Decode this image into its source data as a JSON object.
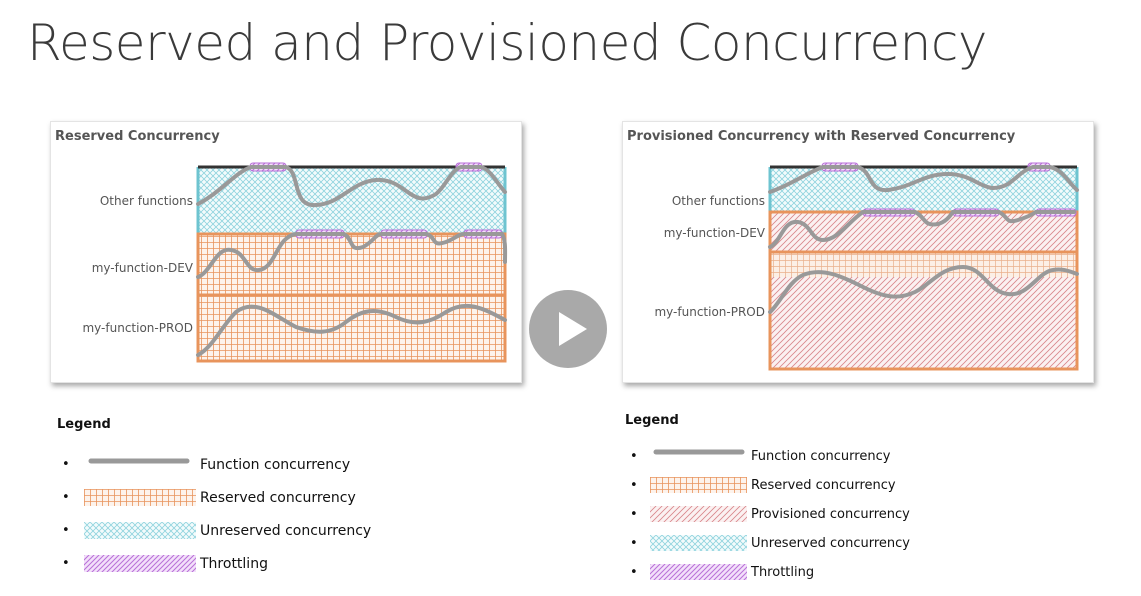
{
  "slide": {
    "title": "Reserved and Provisioned Concurrency"
  },
  "left_panel": {
    "title": "Reserved Concurrency",
    "rows": [
      "Other functions",
      "my-function-DEV",
      "my-function-PROD"
    ]
  },
  "right_panel": {
    "title": "Provisioned Concurrency with Reserved Concurrency",
    "rows": [
      "Other functions",
      "my-function-DEV",
      "my-function-PROD"
    ]
  },
  "left_legend": {
    "title": "Legend",
    "items": [
      {
        "label": "Function concurrency",
        "pattern": "line"
      },
      {
        "label": "Reserved concurrency",
        "pattern": "reserved"
      },
      {
        "label": "Unreserved concurrency",
        "pattern": "unreserved"
      },
      {
        "label": "Throttling",
        "pattern": "throttle"
      }
    ]
  },
  "right_legend": {
    "title": "Legend",
    "items": [
      {
        "label": "Function concurrency",
        "pattern": "line"
      },
      {
        "label": "Reserved concurrency",
        "pattern": "reserved"
      },
      {
        "label": "Provisioned concurrency",
        "pattern": "provisioned"
      },
      {
        "label": "Unreserved concurrency",
        "pattern": "unreserved"
      },
      {
        "label": "Throttling",
        "pattern": "throttle"
      }
    ]
  },
  "colors": {
    "reserved": "#e8945c",
    "unreserved": "#8fd3de",
    "provisioned": "#d9858a",
    "throttle": "#c98be0",
    "line": "#999999",
    "top_bar": "#333333",
    "other_border": "#6ec4d0"
  },
  "play_button": {
    "icon": "play-icon"
  }
}
